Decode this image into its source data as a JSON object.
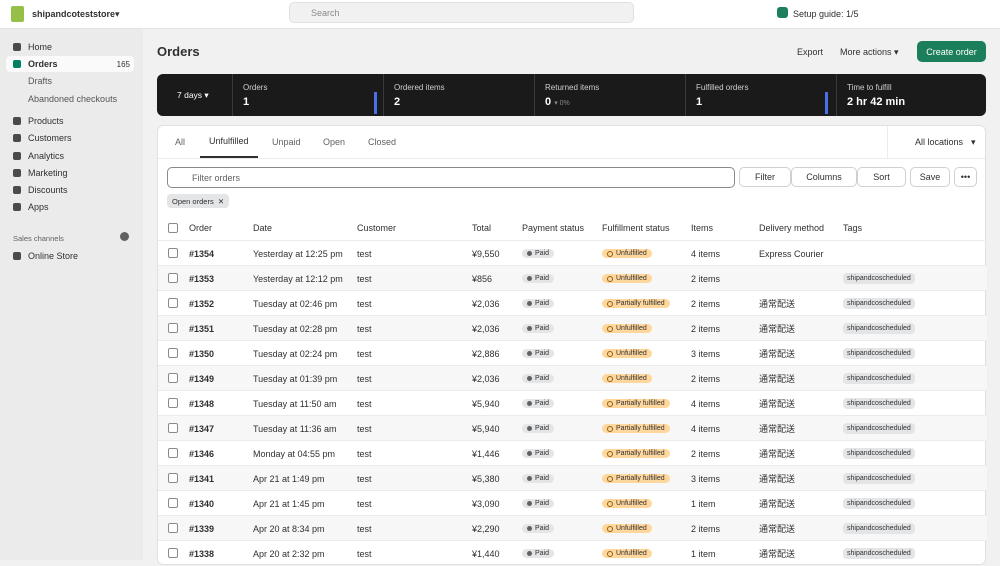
{
  "topbar": {
    "store": "shipandcoteststore",
    "search": "Search",
    "setup": "Setup guide: 1/5"
  },
  "sidebar": {
    "items": [
      {
        "label": "Home"
      },
      {
        "label": "Orders",
        "count": "165"
      },
      {
        "label": "Drafts"
      },
      {
        "label": "Abandoned checkouts"
      },
      {
        "label": "Products"
      },
      {
        "label": "Customers"
      },
      {
        "label": "Analytics"
      },
      {
        "label": "Marketing"
      },
      {
        "label": "Discounts"
      },
      {
        "label": "Apps"
      }
    ],
    "section": "Sales channels",
    "channel": "Online Store"
  },
  "header": {
    "title": "Orders",
    "export": "Export",
    "more": "More actions",
    "create": "Create order"
  },
  "stats": {
    "period": "7 days",
    "cards": [
      {
        "label": "Orders",
        "value": "1"
      },
      {
        "label": "Ordered items",
        "value": "2"
      },
      {
        "label": "Returned items",
        "value": "0",
        "delta": "0%"
      },
      {
        "label": "Fulfilled orders",
        "value": "1"
      },
      {
        "label": "Time to fulfill",
        "value": "2 hr 42 min"
      }
    ]
  },
  "tabs": {
    "items": [
      "All",
      "Unfulfilled",
      "Unpaid",
      "Open",
      "Closed"
    ],
    "locations": "All locations"
  },
  "filters": {
    "placeholder": "Filter orders",
    "filter": "Filter",
    "columns": "Columns",
    "sort": "Sort",
    "save": "Save",
    "chip": "Open orders"
  },
  "table": {
    "columns": [
      "Order",
      "Date",
      "Customer",
      "Total",
      "Payment status",
      "Fulfillment status",
      "Items",
      "Delivery method",
      "Tags"
    ],
    "rows": [
      [
        "#1354",
        "Yesterday at 12:25 pm",
        "test",
        "¥9,550",
        "Paid",
        "Unfulfilled",
        "4 items",
        "Express Courier",
        null
      ],
      [
        "#1353",
        "Yesterday at 12:12 pm",
        "test",
        "¥856",
        "Paid",
        "Unfulfilled",
        "2 items",
        null,
        "shipandcoscheduled"
      ],
      [
        "#1352",
        "Tuesday at 02:46 pm",
        "test",
        "¥2,036",
        "Paid",
        "Partially fulfilled",
        "2 items",
        "通常配送",
        "shipandcoscheduled"
      ],
      [
        "#1351",
        "Tuesday at 02:28 pm",
        "test",
        "¥2,036",
        "Paid",
        "Unfulfilled",
        "2 items",
        "通常配送",
        "shipandcoscheduled"
      ],
      [
        "#1350",
        "Tuesday at 02:24 pm",
        "test",
        "¥2,886",
        "Paid",
        "Unfulfilled",
        "3 items",
        "通常配送",
        "shipandcoscheduled"
      ],
      [
        "#1349",
        "Tuesday at 01:39 pm",
        "test",
        "¥2,036",
        "Paid",
        "Unfulfilled",
        "2 items",
        "通常配送",
        "shipandcoscheduled"
      ],
      [
        "#1348",
        "Tuesday at 11:50 am",
        "test",
        "¥5,940",
        "Paid",
        "Partially fulfilled",
        "4 items",
        "通常配送",
        "shipandcoscheduled"
      ],
      [
        "#1347",
        "Tuesday at 11:36 am",
        "test",
        "¥5,940",
        "Paid",
        "Partially fulfilled",
        "4 items",
        "通常配送",
        "shipandcoscheduled"
      ],
      [
        "#1346",
        "Monday at 04:55 pm",
        "test",
        "¥1,446",
        "Paid",
        "Partially fulfilled",
        "2 items",
        "通常配送",
        "shipandcoscheduled"
      ],
      [
        "#1341",
        "Apr 21 at 1:49 pm",
        "test",
        "¥5,380",
        "Paid",
        "Partially fulfilled",
        "3 items",
        "通常配送",
        "shipandcoscheduled"
      ],
      [
        "#1340",
        "Apr 21 at 1:45 pm",
        "test",
        "¥3,090",
        "Paid",
        "Unfulfilled",
        "1 item",
        "通常配送",
        "shipandcoscheduled"
      ],
      [
        "#1339",
        "Apr 20 at 8:34 pm",
        "test",
        "¥2,290",
        "Paid",
        "Unfulfilled",
        "2 items",
        "通常配送",
        "shipandcoscheduled"
      ],
      [
        "#1338",
        "Apr 20 at 2:32 pm",
        "test",
        "¥1,440",
        "Paid",
        "Unfulfilled",
        "1 item",
        "通常配送",
        "shipandcoscheduled"
      ]
    ]
  }
}
